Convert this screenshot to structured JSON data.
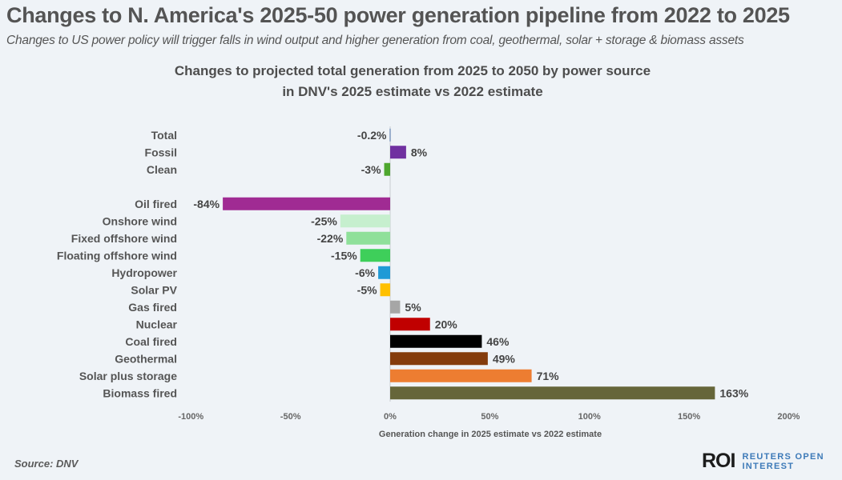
{
  "header": {
    "title": "Changes to N. America's 2025-50 power generation pipeline from 2022 to 2025",
    "subtitle": "Changes to US power policy will trigger falls in wind output and higher generation from coal, geothermal, solar + storage & biomass assets"
  },
  "chart_data": {
    "type": "bar",
    "orientation": "horizontal",
    "title": "Changes to projected total generation from 2025 to 2050 by power source",
    "subtitle": "in DNV's 2025 estimate vs 2022 estimate",
    "xlabel": "Generation change in 2025 estimate vs 2022 estimate",
    "ylabel": "",
    "xlim": [
      -100,
      200
    ],
    "xticks": [
      -100,
      -50,
      0,
      50,
      100,
      150,
      200
    ],
    "xtick_labels": [
      "-100%",
      "-50%",
      "0%",
      "50%",
      "100%",
      "150%",
      "200%"
    ],
    "grid": false,
    "categories": [
      "Total",
      "Fossil",
      "Clean",
      "",
      "Oil fired",
      "Onshore wind",
      "Fixed offshore wind",
      "Floating offshore wind",
      "Hydropower",
      "Solar PV",
      "Gas fired",
      "Nuclear",
      "Coal fired",
      "Geothermal",
      "Solar plus storage",
      "Biomass fired"
    ],
    "values": [
      -0.2,
      8,
      -3,
      null,
      -84,
      -25,
      -22,
      -15,
      -6,
      -5,
      5,
      20,
      46,
      49,
      71,
      163
    ],
    "data_labels": [
      "-0.2%",
      "8%",
      "-3%",
      "",
      "-84%",
      "-25%",
      "-22%",
      "-15%",
      "-6%",
      "-5%",
      "5%",
      "20%",
      "46%",
      "49%",
      "71%",
      "163%"
    ],
    "colors": [
      "#4a6fa5",
      "#7030a0",
      "#4ea72e",
      null,
      "#a02b93",
      "#c6efce",
      "#8fe09a",
      "#3ecf5a",
      "#1f9ad6",
      "#ffc000",
      "#a6a6a6",
      "#c00000",
      "#000000",
      "#843c0c",
      "#ed7d31",
      "#66663a"
    ]
  },
  "footer": {
    "source": "Source: DNV",
    "logo_mark": "ROI",
    "logo_line1": "REUTERS OPEN",
    "logo_line2": "INTEREST"
  }
}
